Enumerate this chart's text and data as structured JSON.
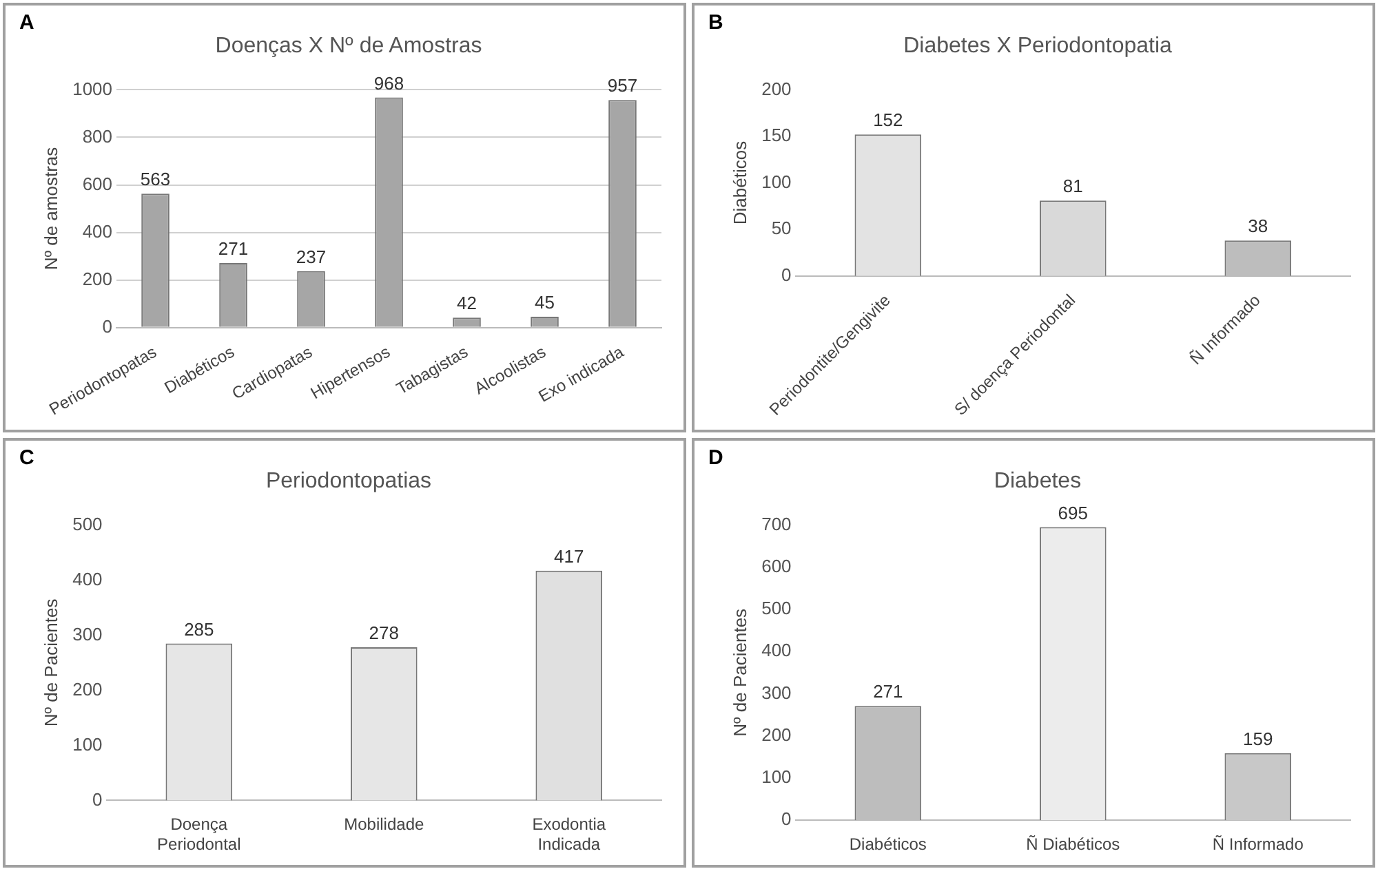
{
  "chart_data": [
    {
      "type": "bar",
      "title": "Doenças X Nº de Amostras",
      "ylabel": "Nº de amostras",
      "annotations": [
        "A"
      ],
      "categories": [
        "Periodontopatas",
        "Diabéticos",
        "Cardiopatas",
        "Hipertensos",
        "Tabagistas",
        "Alcoolistas",
        "Exo indicada"
      ],
      "values": [
        563,
        271,
        237,
        968,
        42,
        45,
        957
      ],
      "color": "#a6a6a6",
      "ylim": [
        0,
        1000
      ],
      "yticks": [
        0,
        200,
        400,
        600,
        800,
        1000
      ],
      "grid": "y",
      "data_labels": true
    },
    {
      "type": "bar",
      "title": "Diabetes X Periodontopatia",
      "ylabel": "Diabéticos",
      "annotations": [
        "B"
      ],
      "categories": [
        "Periodontite/Gengivite",
        "S/ doença Periodontal",
        "Ñ Informado"
      ],
      "values": [
        152,
        81,
        38
      ],
      "colors": [
        "#e3e3e3",
        "#d9d9d9",
        "#bdbdbd"
      ],
      "ylim": [
        0,
        200
      ],
      "yticks": [
        0,
        50,
        100,
        150,
        200
      ],
      "data_labels": true
    },
    {
      "type": "bar",
      "title": "Periodontopatias",
      "ylabel": "Nº de Pacientes",
      "annotations": [
        "C"
      ],
      "categories": [
        "Doença Periodontal",
        "Mobilidade",
        "Exodontia Indicada"
      ],
      "values": [
        285,
        278,
        417
      ],
      "colors": [
        "#e6e6e6",
        "#e6e6e6",
        "#e0e0e0"
      ],
      "ylim": [
        0,
        500
      ],
      "yticks": [
        0,
        100,
        200,
        300,
        400,
        500
      ],
      "data_labels": true
    },
    {
      "type": "bar",
      "title": "Diabetes",
      "ylabel": "Nº de Pacientes",
      "annotations": [
        "D"
      ],
      "categories": [
        "Diabéticos",
        "Ñ Diabéticos",
        "Ñ Informado"
      ],
      "values": [
        271,
        695,
        159
      ],
      "colors": [
        "#bdbdbd",
        "#ececec",
        "#c8c8c8"
      ],
      "ylim": [
        0,
        700
      ],
      "yticks": [
        0,
        100,
        200,
        300,
        400,
        500,
        600,
        700
      ],
      "data_labels": true
    }
  ]
}
